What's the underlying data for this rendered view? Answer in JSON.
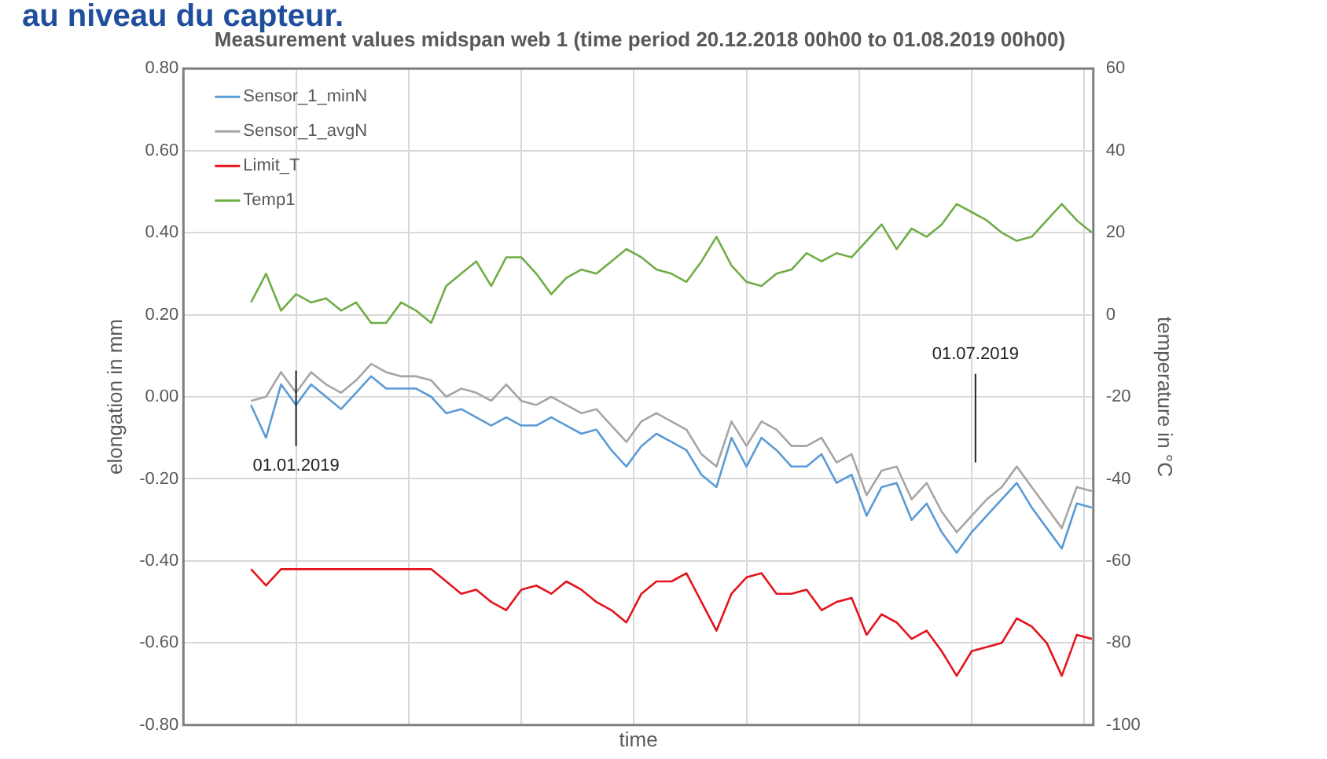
{
  "chart_data": {
    "type": "line",
    "title": "Measurement values midspan web 1 (time period 20.12.2018 00h00 to 01.08.2019 00h00)",
    "xlabel": "time",
    "ylabel": "elongation in mm",
    "y2label": "temperature in °C",
    "annotations": [
      "au niveau du capteur.",
      "01.01.2019",
      "01.07.2019"
    ],
    "categories": [
      null,
      null,
      null,
      null,
      null,
      null,
      null,
      null,
      null,
      null,
      null,
      null,
      null,
      null,
      null,
      null,
      null,
      null,
      null,
      null,
      null,
      null,
      null,
      null,
      null,
      null,
      null,
      null,
      null,
      null,
      null,
      null,
      null,
      null,
      null,
      null,
      null,
      null,
      null,
      null,
      null,
      null,
      null,
      null,
      null,
      null,
      null,
      null,
      null,
      null,
      null,
      null,
      null,
      null,
      null,
      null,
      null
    ],
    "ylim": [
      -0.8,
      0.8
    ],
    "yticks": [
      {
        "value": -0.8,
        "label": "-0.80"
      },
      {
        "value": -0.6,
        "label": "-0.60"
      },
      {
        "value": -0.4,
        "label": "-0.40"
      },
      {
        "value": -0.2,
        "label": "-0.20"
      },
      {
        "value": 0,
        "label": "0.00"
      },
      {
        "value": 0.2,
        "label": "0.20"
      },
      {
        "value": 0.4,
        "label": "0.40"
      },
      {
        "value": 0.6,
        "label": "0.60"
      },
      {
        "value": 0.8,
        "label": "0.80"
      }
    ],
    "y2lim": [
      -100,
      60
    ],
    "y2ticks": [
      -100,
      -80,
      -60,
      -40,
      -20,
      0,
      20,
      40,
      60
    ],
    "grid": true,
    "legend": "top left",
    "marker": "none",
    "line_style": "solid",
    "series": [
      {
        "name": "Sensor_1_minN",
        "color": "#5b9bd5",
        "values": [
          -0.02,
          -0.1,
          0.03,
          -0.02,
          0.03,
          0.0,
          -0.03,
          0.01,
          0.05,
          0.02,
          0.02,
          0.02,
          0.0,
          -0.04,
          -0.03,
          -0.05,
          -0.07,
          -0.05,
          -0.07,
          -0.07,
          -0.05,
          -0.07,
          -0.09,
          -0.08,
          -0.13,
          -0.17,
          -0.12,
          -0.09,
          -0.11,
          -0.13,
          -0.19,
          -0.22,
          -0.1,
          -0.17,
          -0.1,
          -0.13,
          -0.17,
          -0.17,
          -0.14,
          -0.21,
          -0.19,
          -0.29,
          -0.22,
          -0.21,
          -0.3,
          -0.26,
          -0.33,
          -0.38,
          -0.33,
          -0.29,
          -0.25,
          -0.21,
          -0.27,
          -0.32,
          -0.37,
          -0.26,
          -0.27
        ]
      },
      {
        "name": "Sensor_1_avgN",
        "color": "#a5a5a5",
        "values": [
          -0.01,
          0.0,
          0.06,
          0.01,
          0.06,
          0.03,
          0.01,
          0.04,
          0.08,
          0.06,
          0.05,
          0.05,
          0.04,
          0.0,
          0.02,
          0.01,
          -0.01,
          0.03,
          -0.01,
          -0.02,
          0.0,
          -0.02,
          -0.04,
          -0.03,
          -0.07,
          -0.11,
          -0.06,
          -0.04,
          -0.06,
          -0.08,
          -0.14,
          -0.17,
          -0.06,
          -0.12,
          -0.06,
          -0.08,
          -0.12,
          -0.12,
          -0.1,
          -0.16,
          -0.14,
          -0.24,
          -0.18,
          -0.17,
          -0.25,
          -0.21,
          -0.28,
          -0.33,
          -0.29,
          -0.25,
          -0.22,
          -0.17,
          -0.22,
          -0.27,
          -0.32,
          -0.22,
          -0.23
        ]
      },
      {
        "name": "Limit_T",
        "color": "#e3141c",
        "values": [
          -0.42,
          -0.46,
          -0.42,
          -0.42,
          -0.42,
          -0.42,
          -0.42,
          -0.42,
          -0.42,
          -0.42,
          -0.42,
          -0.42,
          -0.42,
          -0.45,
          -0.48,
          -0.47,
          -0.5,
          -0.52,
          -0.47,
          -0.46,
          -0.48,
          -0.45,
          -0.47,
          -0.5,
          -0.52,
          -0.55,
          -0.48,
          -0.45,
          -0.45,
          -0.43,
          -0.5,
          -0.57,
          -0.48,
          -0.44,
          -0.43,
          -0.48,
          -0.48,
          -0.47,
          -0.52,
          -0.5,
          -0.49,
          -0.58,
          -0.53,
          -0.55,
          -0.59,
          -0.57,
          -0.62,
          -0.68,
          -0.62,
          -0.61,
          -0.6,
          -0.54,
          -0.56,
          -0.6,
          -0.68,
          -0.58,
          -0.59
        ]
      },
      {
        "name": "Temp1",
        "color": "#70ad47",
        "axis": "y2",
        "values": [
          3,
          10,
          1,
          5,
          3,
          4,
          1,
          3,
          -2,
          -2,
          3,
          1,
          -2,
          7,
          10,
          13,
          7,
          14,
          14,
          10,
          5,
          9,
          11,
          10,
          13,
          16,
          14,
          11,
          10,
          8,
          13,
          19,
          12,
          8,
          7,
          10,
          11,
          15,
          13,
          15,
          14,
          18,
          22,
          16,
          21,
          19,
          22,
          27,
          25,
          23,
          20,
          18,
          19,
          23,
          27,
          23,
          20
        ]
      }
    ]
  }
}
